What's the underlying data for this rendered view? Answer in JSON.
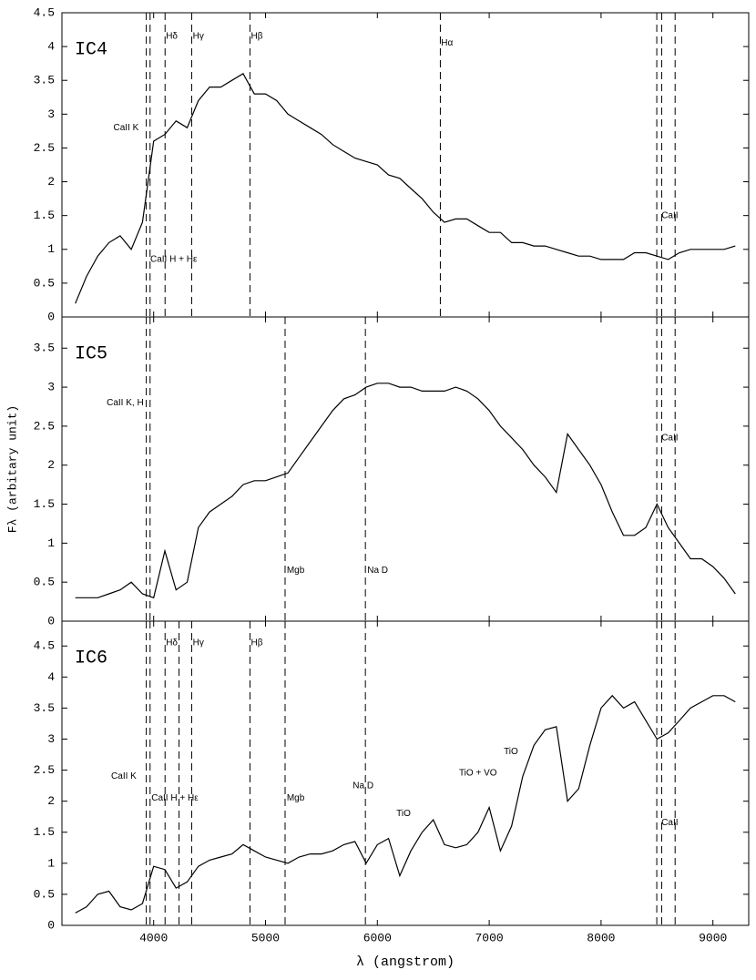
{
  "chart_data": [
    {
      "type": "line",
      "title": "IC4",
      "xlim": [
        3180,
        9320
      ],
      "ylim": [
        0,
        4.5
      ],
      "yticks": [
        0,
        0.5,
        1,
        1.5,
        2,
        2.5,
        3,
        3.5,
        4,
        4.5
      ],
      "x": [
        3300,
        3400,
        3500,
        3600,
        3700,
        3800,
        3900,
        4000,
        4100,
        4200,
        4300,
        4400,
        4500,
        4600,
        4700,
        4800,
        4900,
        5000,
        5100,
        5200,
        5300,
        5400,
        5500,
        5600,
        5700,
        5800,
        5900,
        6000,
        6100,
        6200,
        6300,
        6400,
        6500,
        6600,
        6700,
        6800,
        6900,
        7000,
        7100,
        7200,
        7300,
        7400,
        7500,
        7600,
        7700,
        7800,
        7900,
        8000,
        8100,
        8200,
        8300,
        8400,
        8500,
        8600,
        8700,
        8800,
        8900,
        9000,
        9100,
        9200
      ],
      "series": [
        {
          "color": "#000000",
          "values": [
            0.2,
            0.6,
            0.9,
            1.1,
            1.2,
            1.0,
            1.4,
            2.6,
            2.7,
            2.9,
            2.8,
            3.2,
            3.4,
            3.4,
            3.5,
            3.6,
            3.3,
            3.3,
            3.2,
            3.0,
            2.9,
            2.8,
            2.7,
            2.55,
            2.45,
            2.35,
            2.3,
            2.25,
            2.1,
            2.05,
            1.9,
            1.75,
            1.55,
            1.4,
            1.45,
            1.45,
            1.35,
            1.25,
            1.25,
            1.1,
            1.1,
            1.05,
            1.05,
            1.0,
            0.95,
            0.9,
            0.9,
            0.85,
            0.85,
            0.85,
            0.95,
            0.95,
            0.9,
            0.85,
            0.95,
            1.0,
            1.0,
            1.0,
            1.0,
            1.05
          ]
        }
      ],
      "vlines": [
        3934,
        3968,
        4102,
        4340,
        4861,
        6563,
        8498,
        8542,
        8662
      ],
      "annotations": [
        {
          "text": "CaII K",
          "x": 3640,
          "y": 2.8
        },
        {
          "text": "Hδ",
          "x": 4110,
          "y": 4.15
        },
        {
          "text": "Hγ",
          "x": 4350,
          "y": 4.15
        },
        {
          "text": "Hβ",
          "x": 4870,
          "y": 4.15
        },
        {
          "text": "Hα",
          "x": 6570,
          "y": 4.05
        },
        {
          "text": "CaII",
          "x": 8540,
          "y": 1.5
        },
        {
          "text": "CaII H + Hε",
          "x": 3970,
          "y": 0.85
        }
      ]
    },
    {
      "type": "line",
      "title": "IC5",
      "xlim": [
        3180,
        9320
      ],
      "ylim": [
        0,
        3.9
      ],
      "yticks": [
        0,
        0.5,
        1,
        1.5,
        2,
        2.5,
        3,
        3.5
      ],
      "ylabel": "Fλ (arbitary unit)",
      "x": [
        3300,
        3400,
        3500,
        3600,
        3700,
        3800,
        3900,
        4000,
        4100,
        4200,
        4300,
        4400,
        4500,
        4600,
        4700,
        4800,
        4900,
        5000,
        5100,
        5200,
        5300,
        5400,
        5500,
        5600,
        5700,
        5800,
        5900,
        6000,
        6100,
        6200,
        6300,
        6400,
        6500,
        6600,
        6700,
        6800,
        6900,
        7000,
        7100,
        7200,
        7300,
        7400,
        7500,
        7600,
        7700,
        7800,
        7900,
        8000,
        8100,
        8200,
        8300,
        8400,
        8500,
        8600,
        8700,
        8800,
        8900,
        9000,
        9100,
        9200
      ],
      "series": [
        {
          "color": "#000000",
          "values": [
            0.3,
            0.3,
            0.3,
            0.35,
            0.4,
            0.5,
            0.35,
            0.3,
            0.9,
            0.4,
            0.5,
            1.2,
            1.4,
            1.5,
            1.6,
            1.75,
            1.8,
            1.8,
            1.85,
            1.9,
            2.1,
            2.3,
            2.5,
            2.7,
            2.85,
            2.9,
            3.0,
            3.05,
            3.05,
            3.0,
            3.0,
            2.95,
            2.95,
            2.95,
            3.0,
            2.95,
            2.85,
            2.7,
            2.5,
            2.35,
            2.2,
            2.0,
            1.85,
            1.65,
            2.4,
            2.2,
            2.0,
            1.75,
            1.4,
            1.1,
            1.1,
            1.2,
            1.5,
            1.2,
            1.0,
            0.8,
            0.8,
            0.7,
            0.55,
            0.35
          ]
        }
      ],
      "vlines": [
        3934,
        3968,
        5175,
        5893,
        8498,
        8542,
        8662
      ],
      "annotations": [
        {
          "text": "CaII K, H",
          "x": 3580,
          "y": 2.8
        },
        {
          "text": "CaII",
          "x": 8540,
          "y": 2.35
        },
        {
          "text": "Mgb",
          "x": 5190,
          "y": 0.65
        },
        {
          "text": "Na D",
          "x": 5910,
          "y": 0.65
        }
      ]
    },
    {
      "type": "line",
      "title": "IC6",
      "xlim": [
        3180,
        9320
      ],
      "ylim": [
        0,
        4.9
      ],
      "yticks": [
        0,
        0.5,
        1,
        1.5,
        2,
        2.5,
        3,
        3.5,
        4,
        4.5
      ],
      "xticks": [
        4000,
        5000,
        6000,
        7000,
        8000,
        9000
      ],
      "xlabel": "λ (angstrom)",
      "x": [
        3300,
        3400,
        3500,
        3600,
        3700,
        3800,
        3900,
        4000,
        4100,
        4200,
        4300,
        4400,
        4500,
        4600,
        4700,
        4800,
        4900,
        5000,
        5100,
        5200,
        5300,
        5400,
        5500,
        5600,
        5700,
        5800,
        5900,
        6000,
        6100,
        6200,
        6300,
        6400,
        6500,
        6600,
        6700,
        6800,
        6900,
        7000,
        7100,
        7200,
        7300,
        7400,
        7500,
        7600,
        7700,
        7800,
        7900,
        8000,
        8100,
        8200,
        8300,
        8400,
        8500,
        8600,
        8700,
        8800,
        8900,
        9000,
        9100,
        9200
      ],
      "series": [
        {
          "color": "#000000",
          "values": [
            0.2,
            0.3,
            0.5,
            0.55,
            0.3,
            0.25,
            0.35,
            0.95,
            0.9,
            0.6,
            0.7,
            0.95,
            1.05,
            1.1,
            1.15,
            1.3,
            1.2,
            1.1,
            1.05,
            1.0,
            1.1,
            1.15,
            1.15,
            1.2,
            1.3,
            1.35,
            1.0,
            1.3,
            1.4,
            0.8,
            1.2,
            1.5,
            1.7,
            1.3,
            1.25,
            1.3,
            1.5,
            1.9,
            1.2,
            1.6,
            2.4,
            2.9,
            3.15,
            3.2,
            2.0,
            2.2,
            2.9,
            3.5,
            3.7,
            3.5,
            3.6,
            3.3,
            3.0,
            3.1,
            3.3,
            3.5,
            3.6,
            3.7,
            3.7,
            3.6
          ]
        }
      ],
      "vlines": [
        3934,
        3968,
        4102,
        4227,
        4340,
        4861,
        5175,
        5893,
        8498,
        8542,
        8662
      ],
      "annotations": [
        {
          "text": "CaII K",
          "x": 3620,
          "y": 2.4
        },
        {
          "text": "Hδ",
          "x": 4110,
          "y": 4.55
        },
        {
          "text": "Hγ",
          "x": 4350,
          "y": 4.55
        },
        {
          "text": "Hβ",
          "x": 4870,
          "y": 4.55
        },
        {
          "text": "CaII H + Hε",
          "x": 3980,
          "y": 2.05
        },
        {
          "text": "Mgb",
          "x": 5190,
          "y": 2.05
        },
        {
          "text": "Na D",
          "x": 5780,
          "y": 2.25
        },
        {
          "text": "TiO",
          "x": 6170,
          "y": 1.8
        },
        {
          "text": "TiO + VO",
          "x": 6730,
          "y": 2.45
        },
        {
          "text": "TiO",
          "x": 7130,
          "y": 2.8
        },
        {
          "text": "CaII",
          "x": 8540,
          "y": 1.65
        }
      ]
    }
  ]
}
